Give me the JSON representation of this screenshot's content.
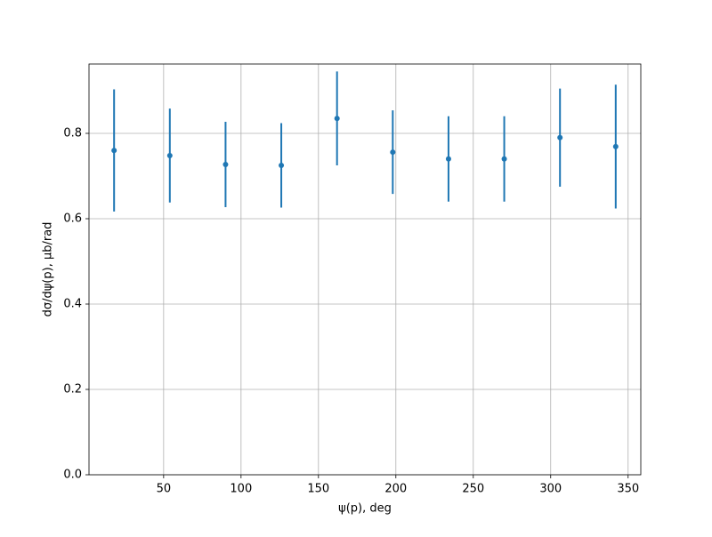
{
  "chart_data": {
    "type": "errorbar",
    "x_label": "ψ(p), deg",
    "y_label": "dσ/dψ(p), μb/rad",
    "x": [
      18,
      54,
      90,
      126,
      162,
      198,
      234,
      270,
      306,
      342
    ],
    "series": [
      {
        "color": "#1f77b4",
        "values": [
          0.76,
          0.748,
          0.727,
          0.725,
          0.835,
          0.756,
          0.74,
          0.74,
          0.79,
          0.769
        ],
        "errors": [
          0.143,
          0.11,
          0.1,
          0.099,
          0.11,
          0.098,
          0.1,
          0.1,
          0.115,
          0.145
        ]
      }
    ],
    "xlim": [
      1.8,
      358.2
    ],
    "ylim": [
      0,
      0.9625
    ],
    "xticks": [
      50,
      100,
      150,
      200,
      250,
      300,
      350
    ],
    "yticks": [
      {
        "value": 0,
        "label": "0.0"
      },
      {
        "value": 0.2,
        "label": "0.2"
      },
      {
        "value": 0.4,
        "label": "0.4"
      },
      {
        "value": 0.6,
        "label": "0.6"
      },
      {
        "value": 0.8,
        "label": "0.8"
      }
    ],
    "grid": true
  }
}
